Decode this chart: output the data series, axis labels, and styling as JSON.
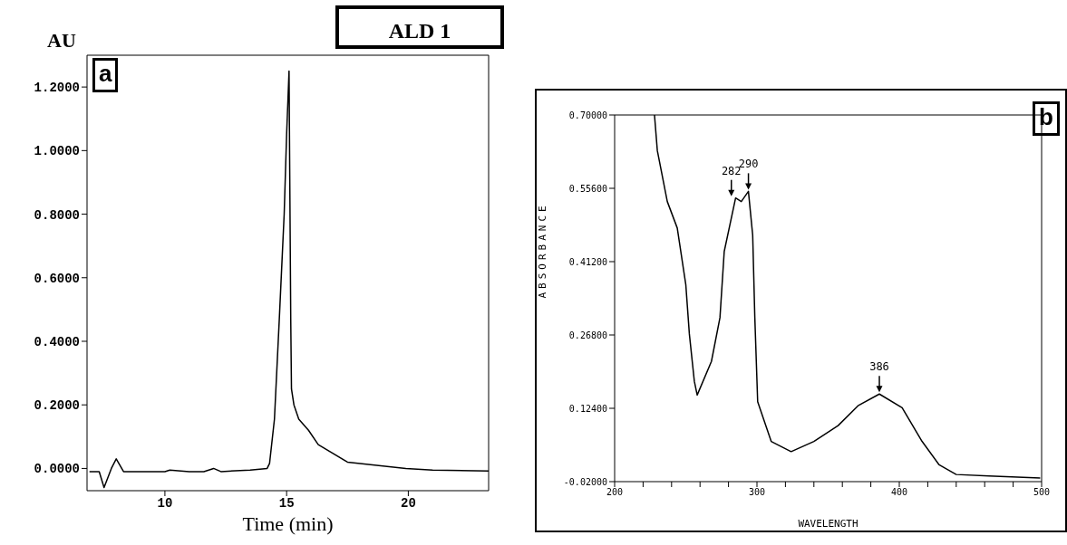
{
  "chart_data": [
    {
      "type": "line",
      "title": "ALD 1",
      "xlabel": "Time (min)",
      "ylabel": "AU",
      "annotations": [
        "a"
      ],
      "marker": "none",
      "line_style": "solid",
      "xlim": [
        6.8,
        23.3
      ],
      "xticks": [
        10,
        15,
        20
      ],
      "ylim": [
        -0.07,
        1.3
      ],
      "yticks": [
        {
          "value": 0,
          "label": "0.0000"
        },
        {
          "value": 0.2,
          "label": "0.2000"
        },
        {
          "value": 0.4,
          "label": "0.4000"
        },
        {
          "value": 0.6,
          "label": "0.6000"
        },
        {
          "value": 0.8,
          "label": "0.8000"
        },
        {
          "value": 1,
          "label": "1.0000"
        },
        {
          "value": 1.2,
          "label": "1.2000"
        }
      ],
      "series": [
        {
          "color": "#000000",
          "x": [
            6.9,
            7.3,
            7.5,
            7.8,
            8.0,
            8.3,
            10,
            10.2,
            11,
            11.6,
            12,
            12.3,
            13.5,
            14.2,
            14.3,
            14.5,
            14.7,
            14.9,
            15.0,
            15.1,
            15.17,
            15.2,
            15.3,
            15.5,
            15.9,
            16.3,
            17.5,
            19.9,
            21,
            23.3
          ],
          "values": [
            -0.01,
            -0.01,
            -0.06,
            0.0,
            0.03,
            -0.01,
            -0.01,
            -0.005,
            -0.01,
            -0.01,
            0.0,
            -0.01,
            -0.005,
            0.0,
            0.016,
            0.155,
            0.47,
            0.8,
            1.05,
            1.25,
            0.47,
            0.25,
            0.2,
            0.155,
            0.12,
            0.075,
            0.02,
            0.0,
            -0.005,
            -0.008
          ]
        }
      ]
    },
    {
      "type": "line",
      "xlabel": "WAVELENGTH",
      "ylabel": "ABSORBANCE",
      "marker": "none",
      "line_style": "solid",
      "annotations": [
        "b",
        {
          "text": "282",
          "x": 282,
          "y": 0.537
        },
        {
          "text": "290",
          "x": 294,
          "y": 0.55
        },
        {
          "text": "386",
          "x": 386,
          "y": 0.152
        }
      ],
      "xlim": [
        200,
        500
      ],
      "xticks": [
        200,
        {
          "value": 220,
          "label": null
        },
        {
          "value": 240,
          "label": null
        },
        {
          "value": 260,
          "label": null
        },
        {
          "value": 280,
          "label": null
        },
        300,
        {
          "value": 320,
          "label": null
        },
        {
          "value": 340,
          "label": null
        },
        {
          "value": 360,
          "label": null
        },
        {
          "value": 380,
          "label": null
        },
        400,
        {
          "value": 420,
          "label": null
        },
        {
          "value": 440,
          "label": null
        },
        {
          "value": 460,
          "label": null
        },
        {
          "value": 480,
          "label": null
        },
        500
      ],
      "ylim": [
        -0.02,
        0.7
      ],
      "yticks": [
        {
          "value": -0.02,
          "label": "-0.02000"
        },
        {
          "value": 0.124,
          "label": "0.12400"
        },
        {
          "value": 0.268,
          "label": "0.26800"
        },
        {
          "value": 0.412,
          "label": "0.41200"
        },
        {
          "value": 0.556,
          "label": "0.55600"
        },
        {
          "value": 0.7,
          "label": "0.70000"
        }
      ],
      "series": [
        {
          "color": "#000000",
          "x": [
            228,
            230,
            237,
            244,
            250,
            252.5,
            256,
            258,
            268,
            274,
            277,
            285,
            289,
            294,
            297,
            298.5,
            300.5,
            310,
            324,
            340,
            357,
            371,
            386,
            402,
            416,
            428,
            440,
            463,
            499
          ],
          "values": [
            0.7,
            0.63,
            0.53,
            0.478,
            0.367,
            0.27,
            0.177,
            0.15,
            0.216,
            0.302,
            0.432,
            0.537,
            0.53,
            0.55,
            0.464,
            0.302,
            0.137,
            0.059,
            0.039,
            0.059,
            0.09,
            0.129,
            0.152,
            0.125,
            0.059,
            0.013,
            -0.006,
            -0.009,
            -0.013
          ]
        }
      ]
    }
  ]
}
